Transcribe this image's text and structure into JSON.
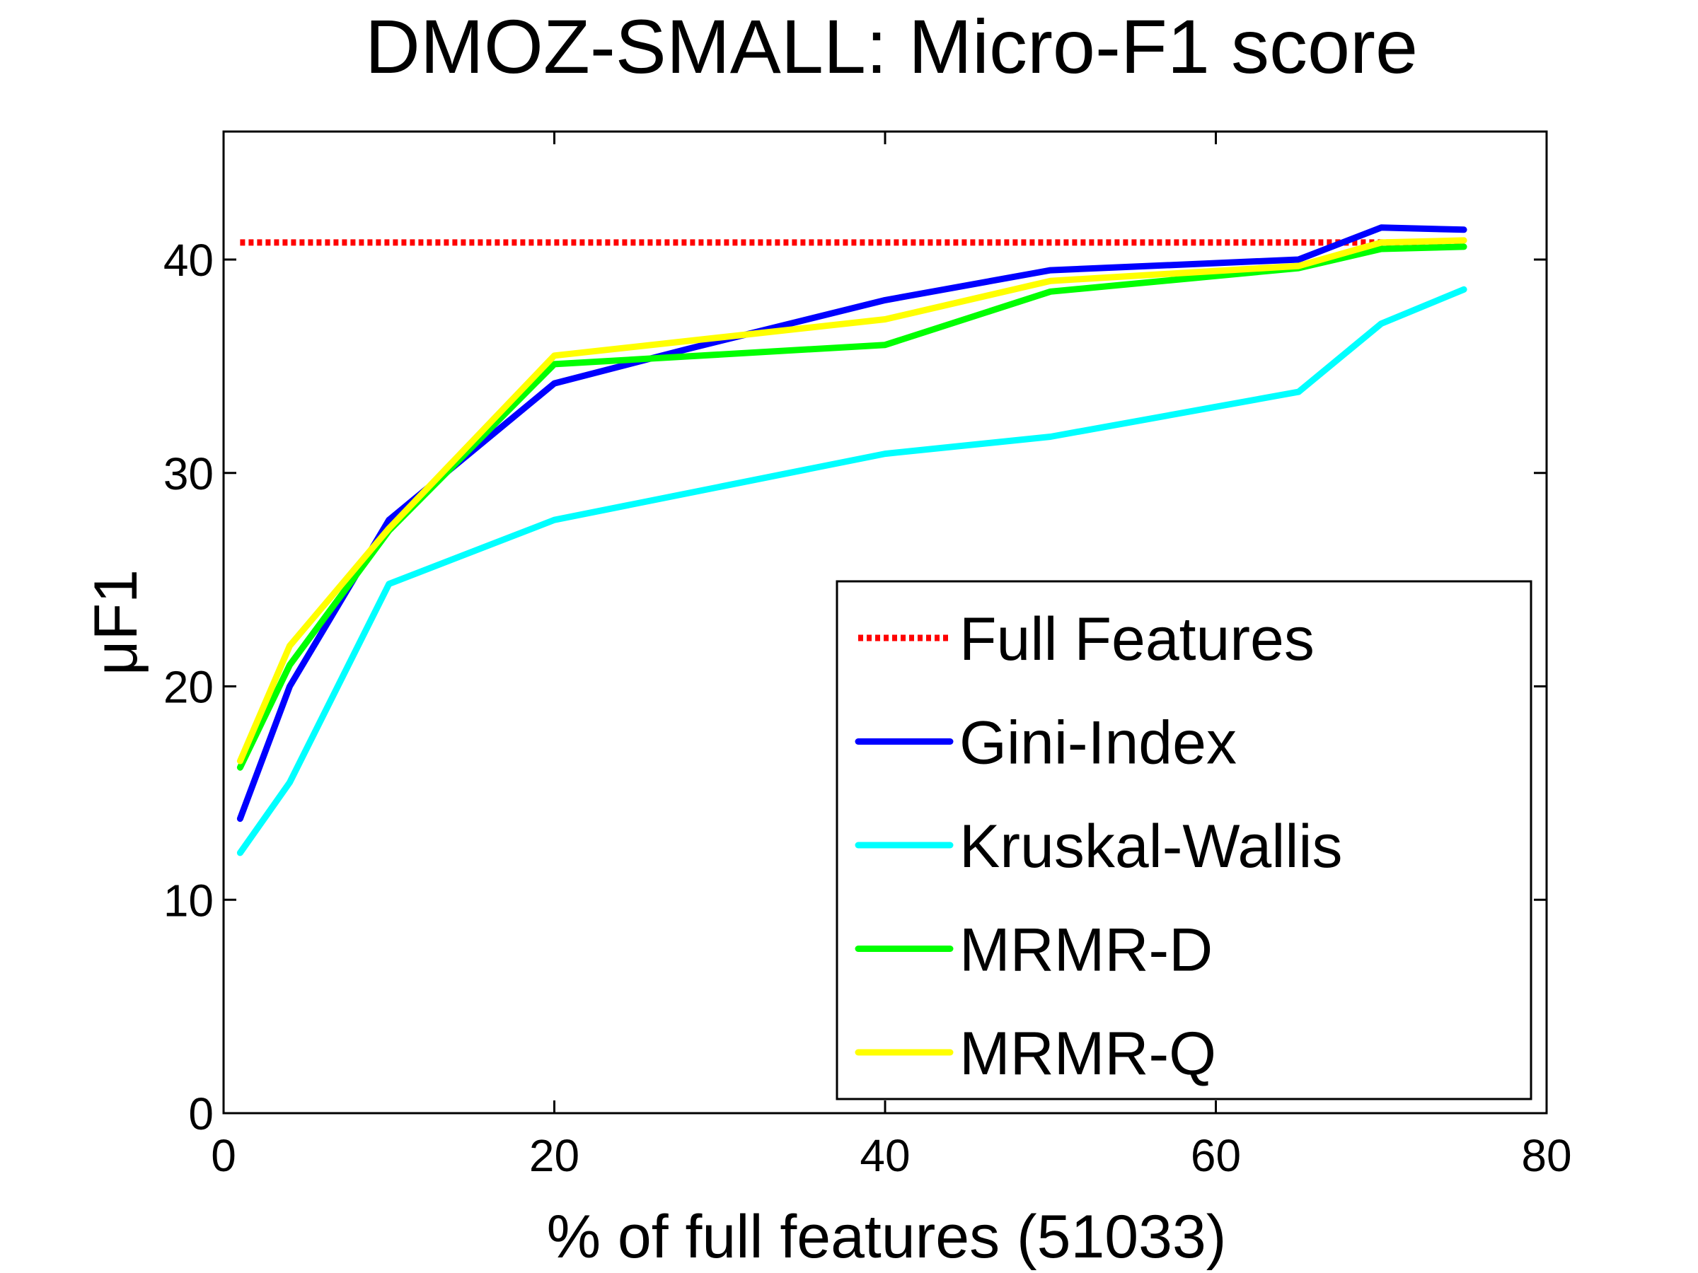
{
  "chart_data": {
    "type": "line",
    "title": "DMOZ-SMALL: Micro-F1 score",
    "xlabel": "% of full features (51033)",
    "ylabel": "μF1",
    "xlim": [
      0,
      80
    ],
    "ylim": [
      0,
      46
    ],
    "xticks": [
      0,
      20,
      40,
      60,
      80
    ],
    "yticks": [
      0,
      10,
      20,
      30,
      40
    ],
    "xtick_labels": [
      "0",
      "20",
      "40",
      "60",
      "80"
    ],
    "ytick_labels": [
      "0",
      "10",
      "20",
      "30",
      "40"
    ],
    "grid": false,
    "legend_position": "bottom-right",
    "series": [
      {
        "name": "Full Features",
        "color": "#ff0000",
        "style": "dotted",
        "x": [
          1,
          75
        ],
        "y": [
          40.8,
          40.8
        ]
      },
      {
        "name": "Gini-Index",
        "color": "#0000ff",
        "style": "solid",
        "x": [
          1,
          4,
          10,
          20,
          28,
          40,
          50,
          65,
          70,
          75
        ],
        "y": [
          13.8,
          20,
          27.8,
          34.2,
          35.8,
          38.1,
          39.5,
          40,
          41.5,
          41.4
        ]
      },
      {
        "name": "Kruskal-Wallis",
        "color": "#00ffff",
        "style": "solid",
        "x": [
          1,
          4,
          10,
          20,
          40,
          50,
          65,
          70,
          75
        ],
        "y": [
          12.2,
          15.5,
          24.8,
          27.8,
          30.9,
          31.7,
          33.8,
          37,
          38.6
        ]
      },
      {
        "name": "MRMR-D",
        "color": "#00ff00",
        "style": "solid",
        "x": [
          1,
          4,
          10,
          20,
          40,
          50,
          65,
          70,
          75
        ],
        "y": [
          16.2,
          21,
          27.3,
          35.1,
          36,
          38.5,
          39.6,
          40.5,
          40.6
        ]
      },
      {
        "name": "MRMR-Q",
        "color": "#ffff00",
        "style": "solid",
        "x": [
          1,
          4,
          10,
          20,
          40,
          50,
          65,
          70,
          75
        ],
        "y": [
          16.5,
          21.9,
          27.4,
          35.5,
          37.2,
          39,
          39.7,
          40.8,
          40.9
        ]
      }
    ]
  }
}
